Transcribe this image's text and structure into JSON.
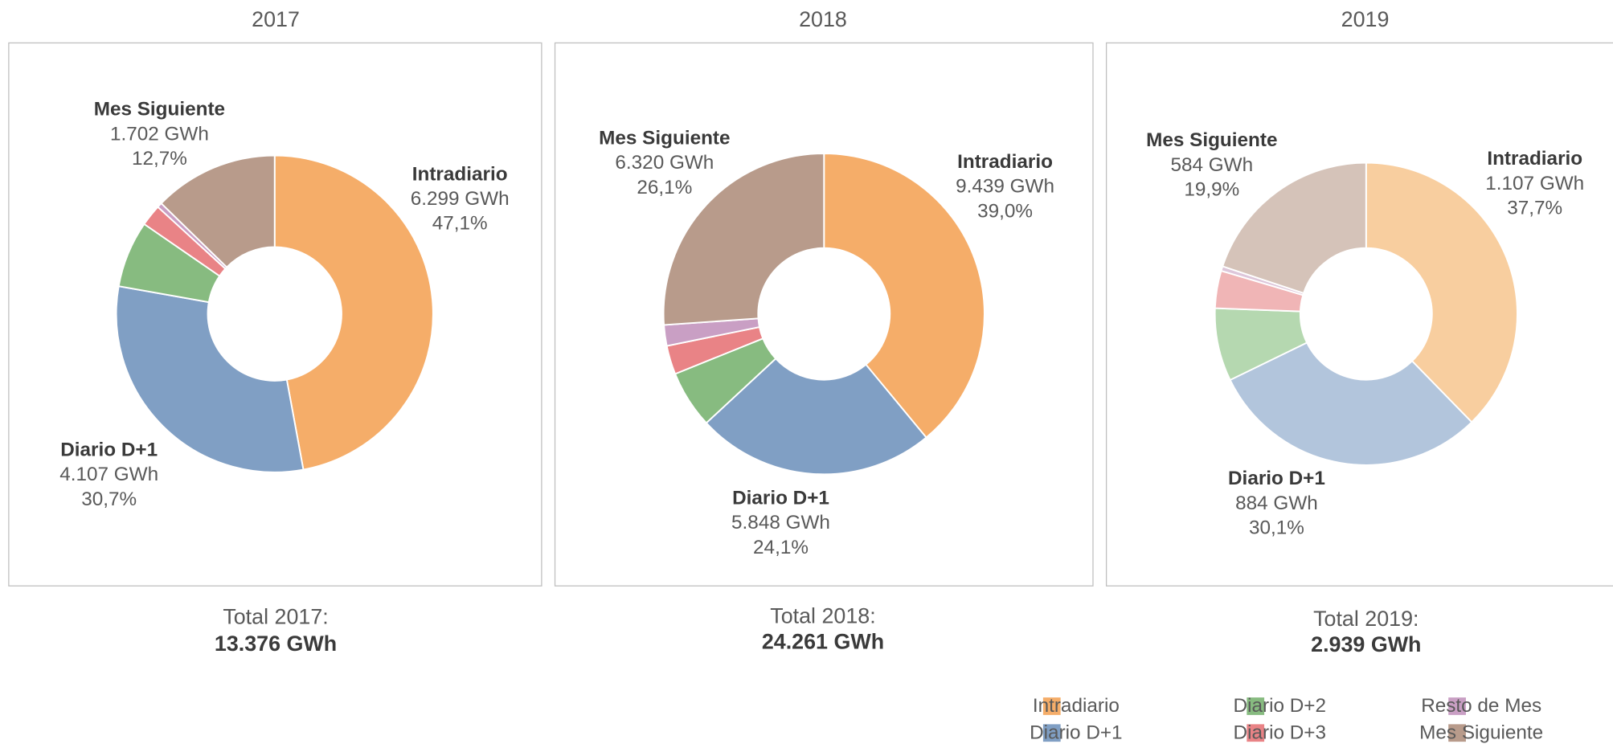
{
  "chart_data": [
    {
      "type": "pie",
      "title": "2017",
      "categories": [
        "Intradiario",
        "Diario D+1",
        "Diario D+2",
        "Diario D+3",
        "Resto de Mes",
        "Mes Siguiente"
      ],
      "values": [
        47.1,
        30.7,
        6.8,
        2.2,
        0.5,
        12.7
      ],
      "value_labels": [
        "47,1%",
        "30,7%",
        null,
        null,
        null,
        "12,7%"
      ],
      "gwh": [
        6299,
        4107,
        null,
        null,
        null,
        1702
      ],
      "gwh_labels": [
        "6.299 GWh",
        "4.107 GWh",
        null,
        null,
        null,
        "1.702 GWh"
      ],
      "colors": [
        "#f5ad69",
        "#809fc4",
        "#87bb80",
        "#e98386",
        "#c99fc4",
        "#b89b8b"
      ],
      "total_caption": "Total 2017:",
      "total": 13376,
      "total_label": "13.376 GWh"
    },
    {
      "type": "pie",
      "title": "2018",
      "categories": [
        "Intradiario",
        "Diario D+1",
        "Diario D+2",
        "Diario D+3",
        "Resto de Mes",
        "Mes Siguiente"
      ],
      "values": [
        39.0,
        24.1,
        5.8,
        2.9,
        2.1,
        26.1
      ],
      "value_labels": [
        "39,0%",
        "24,1%",
        null,
        null,
        null,
        "26,1%"
      ],
      "gwh": [
        9439,
        5848,
        null,
        null,
        null,
        6320
      ],
      "gwh_labels": [
        "9.439 GWh",
        "5.848 GWh",
        null,
        null,
        null,
        "6.320 GWh"
      ],
      "colors": [
        "#f5ad69",
        "#809fc4",
        "#87bb80",
        "#e98386",
        "#c99fc4",
        "#b89b8b"
      ],
      "total_caption": "Total 2018:",
      "total": 24261,
      "total_label": "24.261 GWh"
    },
    {
      "type": "pie",
      "title": "2019",
      "categories": [
        "Intradiario",
        "Diario D+1",
        "Diario D+2",
        "Diario D+3",
        "Resto de Mes",
        "Mes Siguiente"
      ],
      "values": [
        37.7,
        30.1,
        7.8,
        4.0,
        0.5,
        19.9
      ],
      "value_labels": [
        "37,7%",
        "30,1%",
        null,
        null,
        null,
        "19,9%"
      ],
      "gwh": [
        1107,
        884,
        null,
        null,
        null,
        584
      ],
      "gwh_labels": [
        "1.107 GWh",
        "884 GWh",
        null,
        null,
        null,
        "584 GWh"
      ],
      "colors": [
        "#f8ce9f",
        "#b2c5dc",
        "#b5d8b0",
        "#f0b5b6",
        "#ddc6da",
        "#d5c3b9"
      ],
      "total_caption": "Total 2019:",
      "total": 2939,
      "total_label": "2.939 GWh"
    }
  ]
}
